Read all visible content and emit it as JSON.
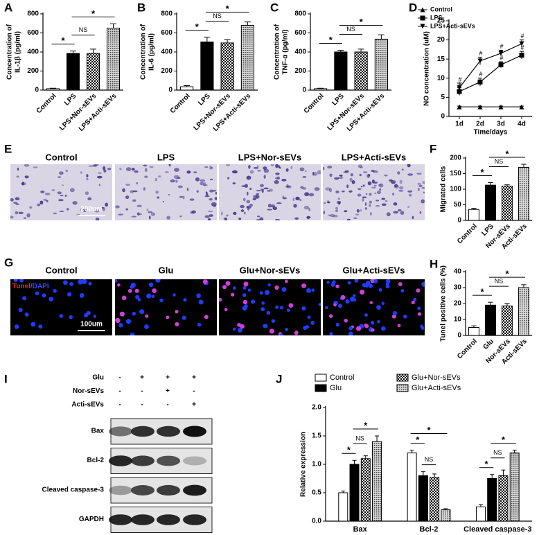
{
  "chart_data": [
    {
      "type": "bar",
      "panel": "A",
      "ylabel": [
        "Concentration of",
        "IL-1β  (pg/ml)"
      ],
      "categories": [
        "Control",
        "LPS",
        "LPS+Nor-sEVs",
        "LPS+Acti-sEVs"
      ],
      "values": [
        15,
        385,
        385,
        650
      ],
      "errors": [
        5,
        25,
        45,
        45
      ],
      "fills": [
        "white",
        "black",
        "checker",
        "dots"
      ],
      "ylim": [
        0,
        800
      ],
      "yticks": [
        0,
        200,
        400,
        600,
        800
      ],
      "significance": [
        {
          "from": 0,
          "to": 1,
          "label": "*"
        },
        {
          "from": 1,
          "to": 2,
          "label": "NS"
        },
        {
          "from": 1,
          "to": 3,
          "label": "*"
        }
      ]
    },
    {
      "type": "bar",
      "panel": "B",
      "ylabel": [
        "Concentration of",
        "IL-6 (pg/ml)"
      ],
      "categories": [
        "Control",
        "LPS",
        "LPS+Nor-sEVs",
        "LPS+Acti-sEVs"
      ],
      "values": [
        35,
        505,
        495,
        680
      ],
      "errors": [
        12,
        50,
        35,
        35
      ],
      "fills": [
        "white",
        "black",
        "checker",
        "dots"
      ],
      "ylim": [
        0,
        800
      ],
      "yticks": [
        0,
        200,
        400,
        600,
        800
      ],
      "significance": [
        {
          "from": 0,
          "to": 1,
          "label": "*"
        },
        {
          "from": 1,
          "to": 2,
          "label": "NS"
        },
        {
          "from": 1,
          "to": 3,
          "label": "*"
        }
      ]
    },
    {
      "type": "bar",
      "panel": "C",
      "ylabel": [
        "Concentration of",
        "TNF-α (pg/ml)"
      ],
      "categories": [
        "Control",
        "LPS",
        "LPS+Nor-sEVs",
        "LPS+Acti-sEVs"
      ],
      "values": [
        15,
        400,
        400,
        535
      ],
      "errors": [
        5,
        18,
        30,
        45
      ],
      "fills": [
        "white",
        "black",
        "checker",
        "dots"
      ],
      "ylim": [
        0,
        800
      ],
      "yticks": [
        0,
        200,
        400,
        600,
        800
      ],
      "significance": [
        {
          "from": 0,
          "to": 1,
          "label": "*"
        },
        {
          "from": 1,
          "to": 2,
          "label": "NS"
        },
        {
          "from": 1,
          "to": 3,
          "label": "*"
        }
      ]
    },
    {
      "type": "line",
      "panel": "D",
      "ylabel": [
        "NO concentration (uM)"
      ],
      "xlabel": "Time/days",
      "categories": [
        "1d",
        "2d",
        "3d",
        "4d"
      ],
      "ylim": [
        0,
        25
      ],
      "yticks": [
        0,
        5,
        10,
        15,
        20,
        25
      ],
      "series": [
        {
          "name": "Control",
          "marker": "triangle-up",
          "color": "#000000",
          "values": [
            2.5,
            2.5,
            2.5,
            2.5
          ],
          "errors": [
            0.2,
            0.2,
            0.2,
            0.2
          ]
        },
        {
          "name": "LPS",
          "marker": "square",
          "color": "#000000",
          "values": [
            6.5,
            9,
            13.5,
            16
          ],
          "errors": [
            1,
            1,
            0.8,
            1
          ]
        },
        {
          "name": "LPS+Acti-sEVs",
          "marker": "triangle-down",
          "color": "#000000",
          "values": [
            7.5,
            14.5,
            16.5,
            19
          ],
          "errors": [
            1.2,
            1,
            0.8,
            1
          ]
        }
      ],
      "annotations": [
        {
          "series": 1,
          "index": 0,
          "label": "#"
        },
        {
          "series": 2,
          "index": 0,
          "label": "#"
        },
        {
          "series": 1,
          "index": 1,
          "label": "#"
        },
        {
          "series": 2,
          "index": 1,
          "label": "#"
        },
        {
          "series": 1,
          "index": 2,
          "label": "#"
        },
        {
          "series": 2,
          "index": 2,
          "label": "#"
        },
        {
          "series": 1,
          "index": 3,
          "label": "#"
        },
        {
          "series": 2,
          "index": 3,
          "label": "#"
        }
      ]
    },
    {
      "type": "bar",
      "panel": "F",
      "ylabel": [
        "Migrated cells"
      ],
      "categories": [
        "Control",
        "LPS",
        "Nor-sEVs",
        "Acti-sEVs"
      ],
      "values": [
        35,
        113,
        110,
        170
      ],
      "errors": [
        4,
        8,
        4,
        10
      ],
      "fills": [
        "white",
        "black",
        "checker",
        "dots"
      ],
      "ylim": [
        0,
        200
      ],
      "yticks": [
        0,
        50,
        100,
        150,
        200
      ],
      "significance": [
        {
          "from": 0,
          "to": 1,
          "label": "*"
        },
        {
          "from": 1,
          "to": 2,
          "label": "NS"
        },
        {
          "from": 1,
          "to": 3,
          "label": "*"
        }
      ]
    },
    {
      "type": "bar",
      "panel": "H",
      "ylabel": [
        "Tunel positive cells (%)"
      ],
      "categories": [
        "Control",
        "Glu",
        "Nor-sEVs",
        "Acti-sEVs"
      ],
      "values": [
        5,
        19,
        18.5,
        30
      ],
      "errors": [
        1,
        1.8,
        1.5,
        1.8
      ],
      "fills": [
        "white",
        "black",
        "checker",
        "dots"
      ],
      "ylim": [
        0,
        40
      ],
      "yticks": [
        0,
        10,
        20,
        30,
        40
      ],
      "significance": [
        {
          "from": 0,
          "to": 1,
          "label": "*"
        },
        {
          "from": 1,
          "to": 2,
          "label": "NS"
        },
        {
          "from": 1,
          "to": 3,
          "label": "*"
        }
      ]
    },
    {
      "type": "grouped-bar",
      "panel": "J",
      "ylabel": [
        "Relative expression"
      ],
      "categories": [
        "Bax",
        "Bcl-2",
        "Cleaved caspase-3"
      ],
      "series": [
        {
          "name": "Control",
          "fill": "white",
          "values": [
            0.5,
            1.2,
            0.25
          ],
          "errors": [
            0.03,
            0.05,
            0.04
          ]
        },
        {
          "name": "Glu",
          "fill": "black",
          "values": [
            1.0,
            0.8,
            0.75
          ],
          "errors": [
            0.07,
            0.07,
            0.07
          ]
        },
        {
          "name": "Glu+Nor-sEVs",
          "fill": "checker",
          "values": [
            1.1,
            0.77,
            0.8
          ],
          "errors": [
            0.05,
            0.06,
            0.1
          ]
        },
        {
          "name": "Glu+Acti-sEVs",
          "fill": "dots",
          "values": [
            1.4,
            0.2,
            1.2
          ],
          "errors": [
            0.1,
            0.02,
            0.05
          ]
        }
      ],
      "ylim": [
        0,
        2
      ],
      "yticks": [
        {
          "value": 0,
          "label": "0.0"
        },
        0.5,
        {
          "value": 1,
          "label": "1.0"
        },
        1.5,
        {
          "value": 2,
          "label": "2.0"
        }
      ],
      "significance": [
        {
          "category": 0,
          "from": 0,
          "to": 1,
          "label": "*"
        },
        {
          "category": 0,
          "from": 1,
          "to": 2,
          "label": "NS"
        },
        {
          "category": 0,
          "from": 1,
          "to": 3,
          "label": "*"
        },
        {
          "category": 1,
          "from": 1,
          "to": 2,
          "label": "NS"
        },
        {
          "category": 1,
          "from": 0,
          "to": 1,
          "label": "*"
        },
        {
          "category": 1,
          "from": 0,
          "to": 3,
          "label": "*"
        },
        {
          "category": 2,
          "from": 0,
          "to": 1,
          "label": "*"
        },
        {
          "category": 2,
          "from": 1,
          "to": 2,
          "label": "NS"
        },
        {
          "category": 2,
          "from": 1,
          "to": 3,
          "label": "*"
        }
      ]
    }
  ],
  "image_panels": [
    {
      "panel": "E",
      "style": "transwell",
      "titles": [
        "Control",
        "LPS",
        "LPS+Nor-sEVs",
        "LPS+Acti-sEVs"
      ],
      "scale_bar": "200um"
    },
    {
      "panel": "G",
      "style": "fluorescence",
      "titles": [
        "Control",
        "Glu",
        "Glu+Nor-sEVs",
        "Glu+Acti-sEVs"
      ],
      "scale_bar": "100um",
      "stain_labels": [
        {
          "text": "Tunel",
          "color": "#ff2020"
        },
        {
          "text": "/DAPI",
          "color": "#3344ff"
        }
      ]
    }
  ],
  "blot": {
    "panel": "I",
    "conditions": [
      {
        "name": "Glu",
        "signs": [
          "-",
          "+",
          "+",
          "+"
        ]
      },
      {
        "name": "Nor-sEVs",
        "signs": [
          "-",
          "-",
          "+",
          "-"
        ]
      },
      {
        "name": "Acti-sEVs",
        "signs": [
          "-",
          "-",
          "-",
          "+"
        ]
      }
    ],
    "bands": [
      "Bax",
      "Bcl-2",
      "Cleaved caspase-3",
      "GAPDH"
    ]
  }
}
